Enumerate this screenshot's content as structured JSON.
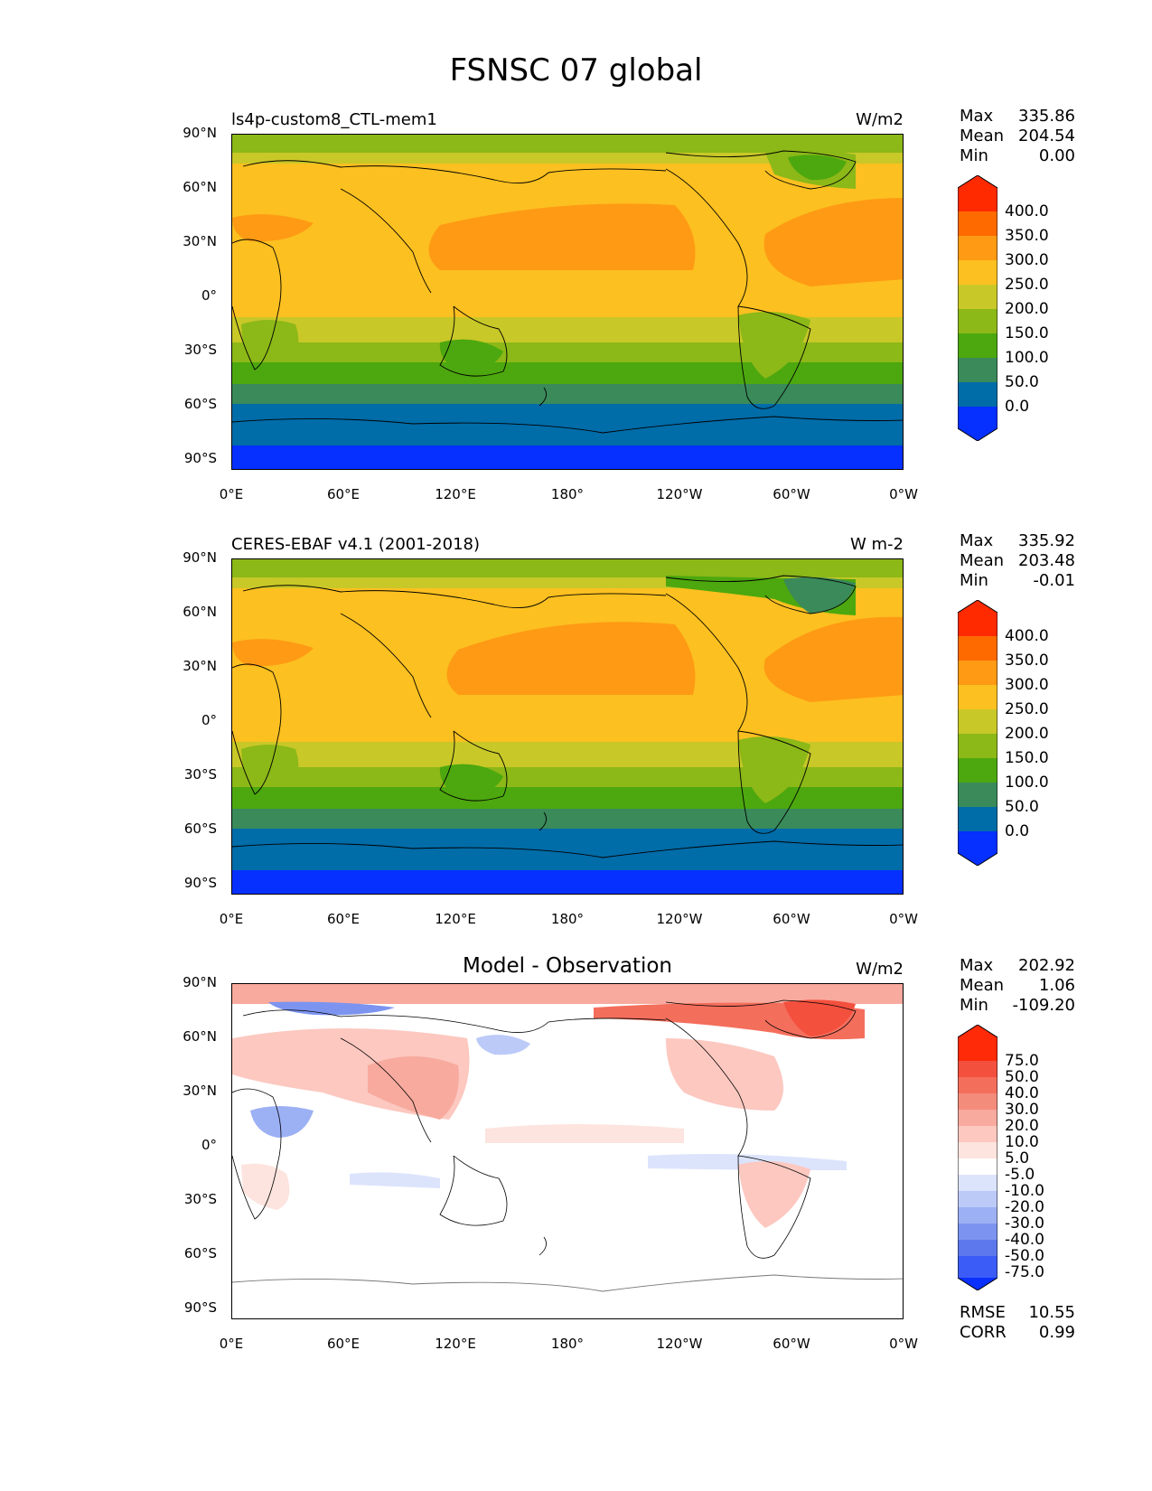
{
  "title": "FSNSC 07 global",
  "axes": {
    "lat_labels": [
      "90°N",
      "60°N",
      "30°N",
      "0°",
      "30°S",
      "60°S",
      "90°S"
    ],
    "lon_labels": [
      "0°E",
      "60°E",
      "120°E",
      "180°",
      "120°W",
      "60°W",
      "0°W"
    ]
  },
  "panels": [
    {
      "left_title": "ls4p-custom8_CTL-mem1",
      "center_title": "",
      "units": "W/m2",
      "stats": [
        {
          "label": "Max",
          "value": "335.86"
        },
        {
          "label": "Mean",
          "value": "204.54"
        },
        {
          "label": "Min",
          "value": "0.00"
        }
      ],
      "colorbar_labels": [
        "400.0",
        "350.0",
        "300.0",
        "250.0",
        "200.0",
        "150.0",
        "100.0",
        "50.0",
        "0.0"
      ]
    },
    {
      "left_title": "CERES-EBAF v4.1 (2001-2018)",
      "center_title": "",
      "units": "W m-2",
      "stats": [
        {
          "label": "Max",
          "value": "335.92"
        },
        {
          "label": "Mean",
          "value": "203.48"
        },
        {
          "label": "Min",
          "value": "-0.01"
        }
      ],
      "colorbar_labels": [
        "400.0",
        "350.0",
        "300.0",
        "250.0",
        "200.0",
        "150.0",
        "100.0",
        "50.0",
        "0.0"
      ]
    },
    {
      "left_title": "",
      "center_title": "Model - Observation",
      "units": "W/m2",
      "stats": [
        {
          "label": "Max",
          "value": "202.92"
        },
        {
          "label": "Mean",
          "value": "1.06"
        },
        {
          "label": "Min",
          "value": "-109.20"
        }
      ],
      "colorbar_labels": [
        "75.0",
        "50.0",
        "40.0",
        "30.0",
        "20.0",
        "10.0",
        "5.0",
        "-5.0",
        "-10.0",
        "-20.0",
        "-30.0",
        "-40.0",
        "-50.0",
        "-75.0"
      ]
    }
  ],
  "footer": [
    {
      "label": "RMSE",
      "value": "10.55"
    },
    {
      "label": "CORR",
      "value": "0.99"
    }
  ],
  "colors": {
    "abs_bands_top_to_bottom": [
      "#ff2a00",
      "#ff6a00",
      "#ff9a14",
      "#fcc020",
      "#c8c828",
      "#8cb818",
      "#4ca80e",
      "#3a8a5a",
      "#006ca8",
      "#0530ff"
    ],
    "diff_bands_top_to_bottom": [
      "#ff2a08",
      "#f4503e",
      "#f46e5c",
      "#f48c7c",
      "#f8aa9e",
      "#fcc8c0",
      "#fde4de",
      "#ffffff",
      "#dce4fc",
      "#bccaf8",
      "#9cb0f4",
      "#7c94f0",
      "#5c78ec",
      "#3c5cf8",
      "#0a30ff"
    ]
  }
}
